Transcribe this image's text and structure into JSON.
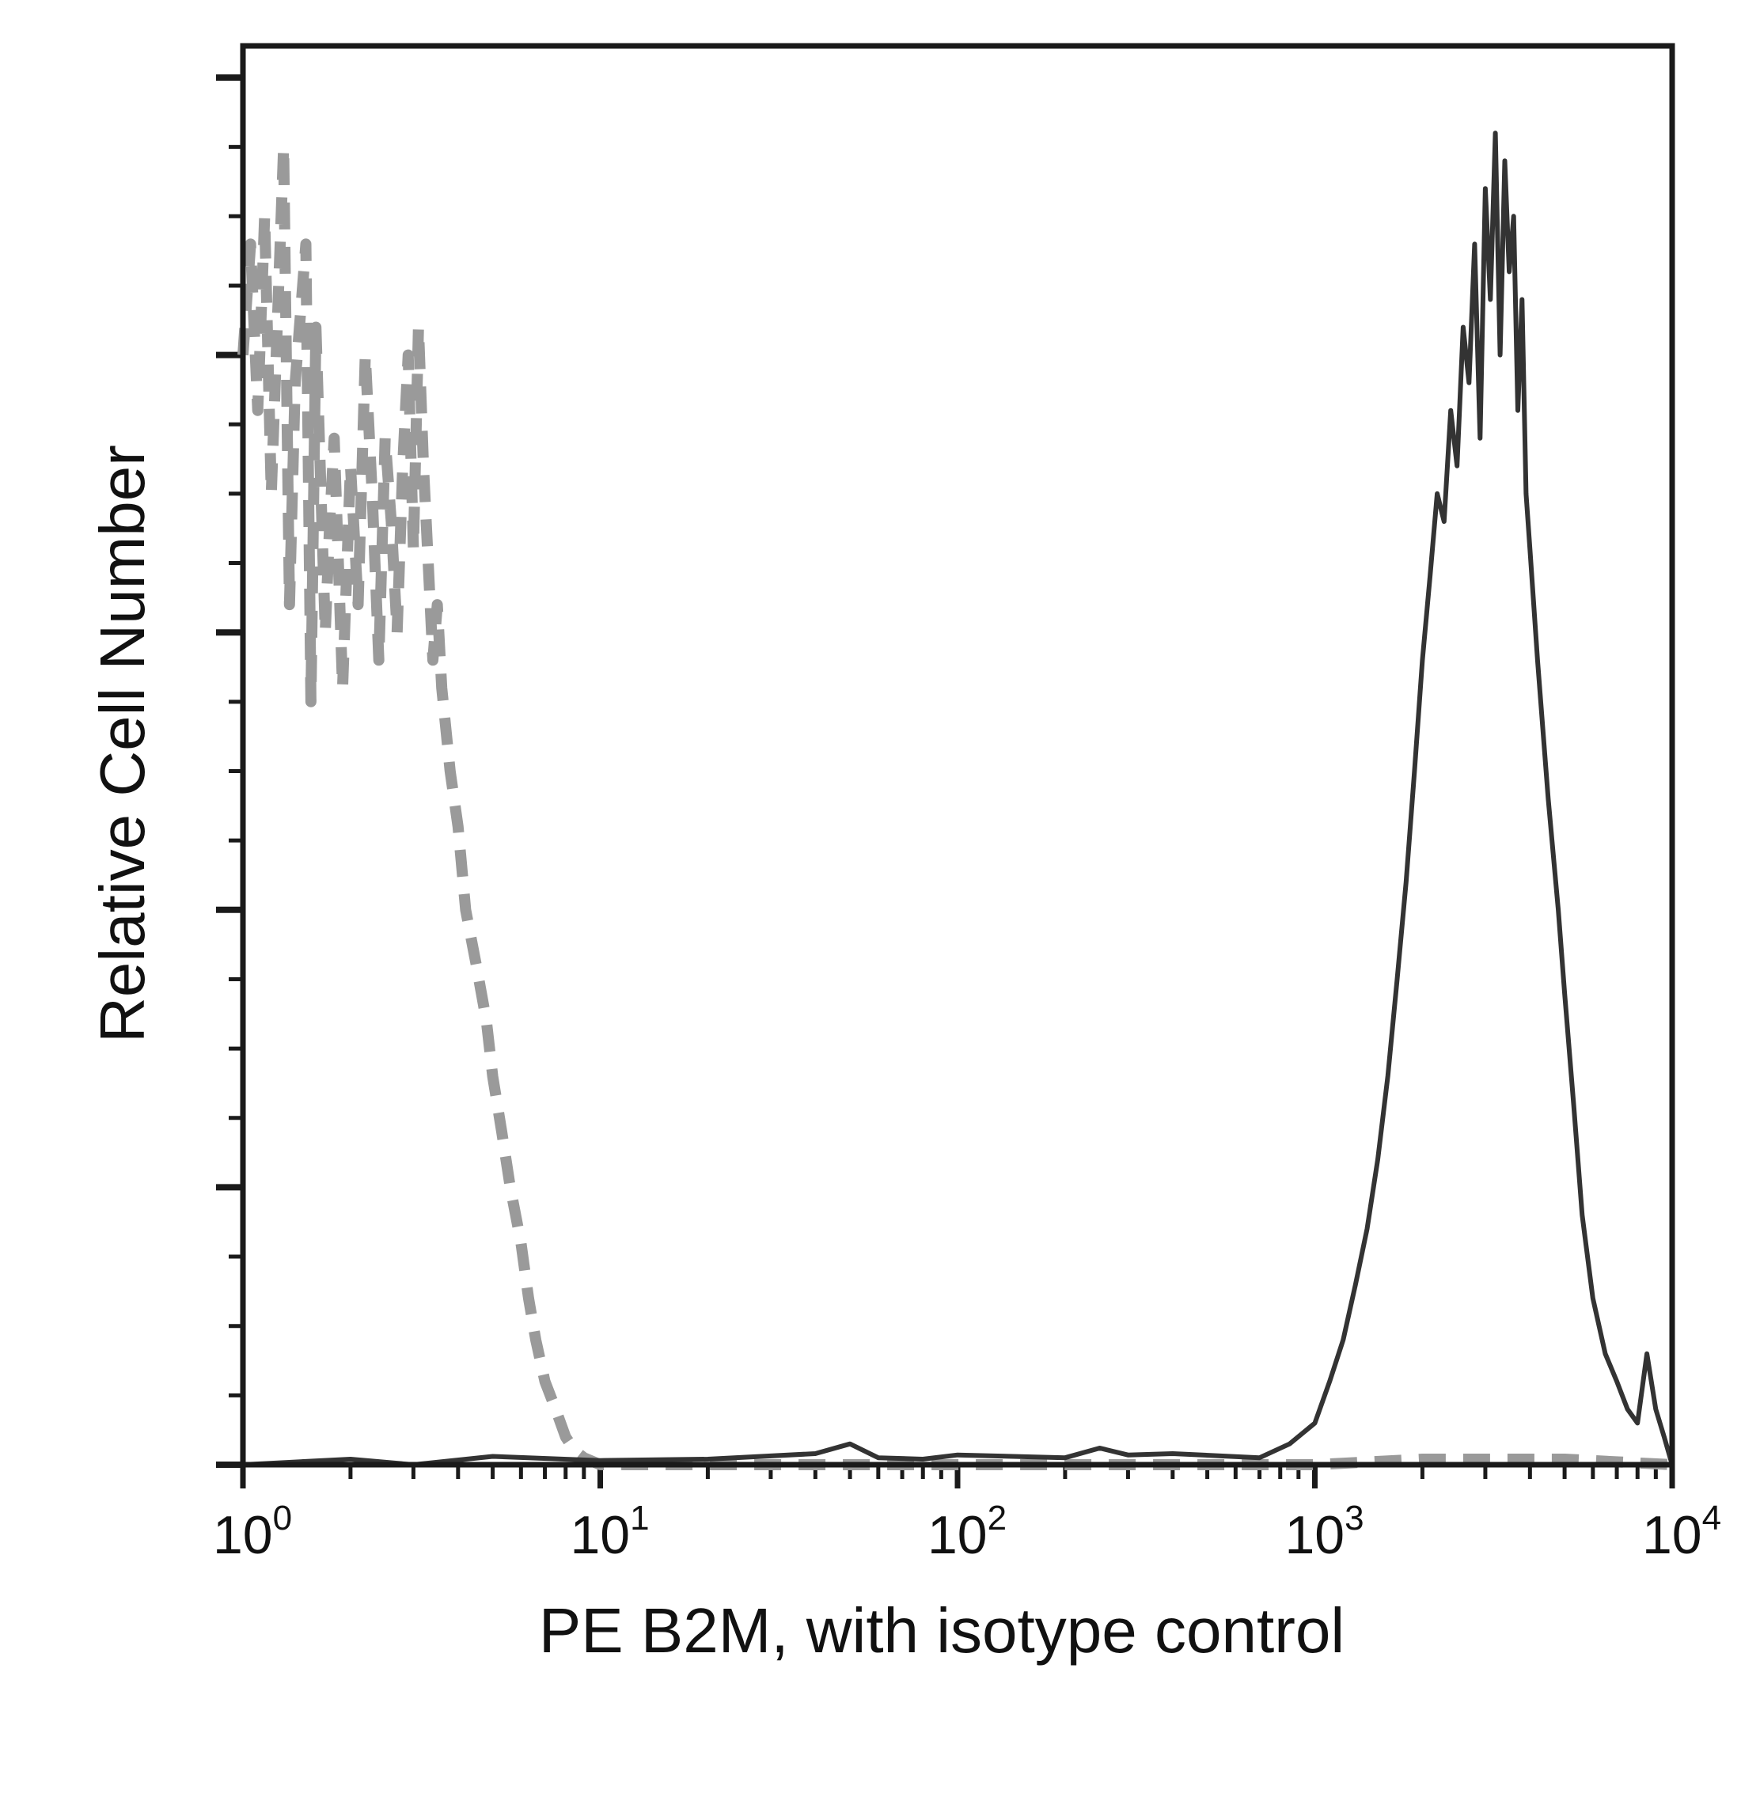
{
  "chart_data": {
    "type": "line",
    "xlabel": "PE B2M, with isotype control",
    "ylabel": "Relative Cell Number",
    "x_scale": "log",
    "xlim": [
      1,
      10000
    ],
    "ylim": [
      0,
      100
    ],
    "x_ticks": [
      {
        "base": "10",
        "exp": "0",
        "value": 1
      },
      {
        "base": "10",
        "exp": "1",
        "value": 10
      },
      {
        "base": "10",
        "exp": "2",
        "value": 100
      },
      {
        "base": "10",
        "exp": "3",
        "value": 1000
      },
      {
        "base": "10",
        "exp": "4",
        "value": 10000
      }
    ],
    "y_minor_ticks": [
      5,
      10,
      15,
      20,
      25,
      30,
      35,
      40,
      45,
      50,
      55,
      60,
      65,
      70,
      75,
      80,
      85,
      90,
      95
    ],
    "y_major_ticks": [
      0,
      20,
      40,
      60,
      80,
      100
    ],
    "grid": false,
    "legend": "none",
    "series": [
      {
        "color": "#9a9a9a",
        "style": "dashed",
        "x": [
          1.0,
          1.05,
          1.1,
          1.15,
          1.2,
          1.3,
          1.35,
          1.4,
          1.5,
          1.55,
          1.6,
          1.7,
          1.75,
          1.8,
          1.9,
          2.0,
          2.1,
          2.2,
          2.3,
          2.4,
          2.5,
          2.6,
          2.7,
          2.8,
          2.9,
          3.0,
          3.1,
          3.2,
          3.3,
          3.4,
          3.5,
          3.6,
          3.8,
          4.0,
          4.2,
          4.5,
          4.8,
          5.0,
          5.3,
          5.6,
          6.0,
          6.3,
          6.6,
          7.0,
          7.5,
          8.0,
          8.5,
          9.0,
          10,
          20,
          50,
          100,
          300,
          1000,
          2000,
          5000,
          10000
        ],
        "y": [
          80,
          88,
          76,
          90,
          70,
          95,
          62,
          78,
          88,
          55,
          82,
          60,
          68,
          74,
          56,
          72,
          62,
          80,
          70,
          58,
          74,
          68,
          60,
          72,
          80,
          66,
          82,
          72,
          65,
          58,
          62,
          56,
          50,
          46,
          40,
          36,
          32,
          28,
          24,
          20,
          16,
          12,
          9,
          6,
          4,
          2,
          1,
          0.5,
          0,
          0,
          0,
          0,
          0,
          0,
          0.4,
          0.4,
          0
        ]
      },
      {
        "color": "#333333",
        "style": "solid",
        "x": [
          1.0,
          2.0,
          3.0,
          5.0,
          10,
          20,
          40,
          50,
          60,
          80,
          100,
          200,
          250,
          300,
          400,
          700,
          850,
          1000,
          1100,
          1200,
          1300,
          1400,
          1500,
          1600,
          1700,
          1800,
          1900,
          2000,
          2100,
          2200,
          2300,
          2400,
          2500,
          2600,
          2700,
          2800,
          2900,
          3000,
          3100,
          3200,
          3300,
          3400,
          3500,
          3600,
          3700,
          3800,
          3900,
          4000,
          4200,
          4500,
          4800,
          5000,
          5300,
          5600,
          6000,
          6500,
          7000,
          7500,
          8000,
          8500,
          9000,
          9500,
          10000
        ],
        "y": [
          0,
          0.4,
          0,
          0.6,
          0.3,
          0.4,
          0.8,
          1.5,
          0.5,
          0.4,
          0.7,
          0.5,
          1.2,
          0.7,
          0.8,
          0.5,
          1.5,
          3,
          6,
          9,
          13,
          17,
          22,
          28,
          35,
          42,
          50,
          58,
          64,
          70,
          68,
          76,
          72,
          82,
          78,
          88,
          74,
          92,
          84,
          96,
          80,
          94,
          86,
          90,
          76,
          84,
          70,
          66,
          58,
          48,
          40,
          34,
          26,
          18,
          12,
          8,
          6,
          4,
          3,
          8,
          4,
          2,
          0
        ]
      }
    ]
  }
}
